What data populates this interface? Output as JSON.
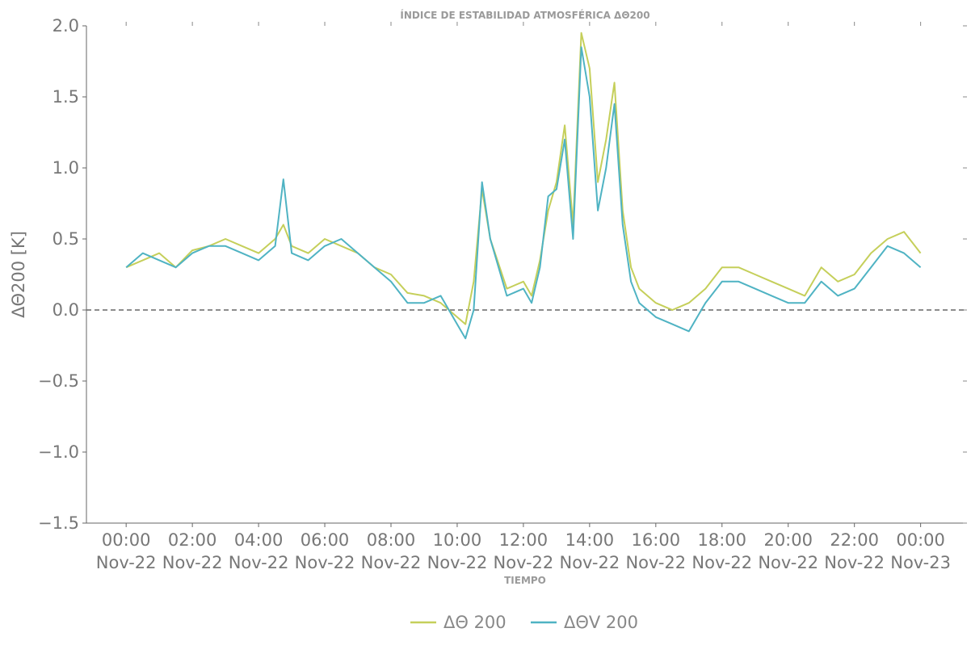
{
  "chart_data": {
    "type": "line",
    "title": "ÍNDICE DE ESTABILIDAD ATMOSFÉRICA ΔΘ200",
    "xlabel": "TIEMPO",
    "ylabel": "ΔΘ200 [K]",
    "ylim": [
      -1.5,
      2.0
    ],
    "y_ticks": [
      "−1.5",
      "−1.0",
      "−0.5",
      "0.0",
      "0.5",
      "1.0",
      "1.5",
      "2.0"
    ],
    "xlim_hours": [
      -1.2,
      25.4
    ],
    "x_ticks": [
      {
        "time": "00:00",
        "date": "Nov-22"
      },
      {
        "time": "02:00",
        "date": "Nov-22"
      },
      {
        "time": "04:00",
        "date": "Nov-22"
      },
      {
        "time": "06:00",
        "date": "Nov-22"
      },
      {
        "time": "08:00",
        "date": "Nov-22"
      },
      {
        "time": "10:00",
        "date": "Nov-22"
      },
      {
        "time": "12:00",
        "date": "Nov-22"
      },
      {
        "time": "14:00",
        "date": "Nov-22"
      },
      {
        "time": "16:00",
        "date": "Nov-22"
      },
      {
        "time": "18:00",
        "date": "Nov-22"
      },
      {
        "time": "20:00",
        "date": "Nov-22"
      },
      {
        "time": "22:00",
        "date": "Nov-22"
      },
      {
        "time": "00:00",
        "date": "Nov-23"
      }
    ],
    "reference_line": {
      "y": 0.0,
      "style": "dashed",
      "color": "#666666"
    },
    "grid": false,
    "legend_position": "bottom-center",
    "series": [
      {
        "name": "ΔΘ 200",
        "color": "#c5cf5a",
        "x": [
          "2022-11-22 00:00",
          "2022-11-22 00:30",
          "2022-11-22 01:00",
          "2022-11-22 01:30",
          "2022-11-22 02:00",
          "2022-11-22 02:30",
          "2022-11-22 03:00",
          "2022-11-22 03:30",
          "2022-11-22 04:00",
          "2022-11-22 04:30",
          "2022-11-22 04:45",
          "2022-11-22 05:00",
          "2022-11-22 05:30",
          "2022-11-22 06:00",
          "2022-11-22 06:30",
          "2022-11-22 07:00",
          "2022-11-22 07:30",
          "2022-11-22 08:00",
          "2022-11-22 08:30",
          "2022-11-22 09:00",
          "2022-11-22 09:30",
          "2022-11-22 10:00",
          "2022-11-22 10:15",
          "2022-11-22 10:30",
          "2022-11-22 10:45",
          "2022-11-22 11:00",
          "2022-11-22 11:30",
          "2022-11-22 12:00",
          "2022-11-22 12:15",
          "2022-11-22 12:30",
          "2022-11-22 12:45",
          "2022-11-22 13:00",
          "2022-11-22 13:15",
          "2022-11-22 13:30",
          "2022-11-22 13:45",
          "2022-11-22 14:00",
          "2022-11-22 14:15",
          "2022-11-22 14:30",
          "2022-11-22 14:45",
          "2022-11-22 15:00",
          "2022-11-22 15:15",
          "2022-11-22 15:30",
          "2022-11-22 16:00",
          "2022-11-22 16:30",
          "2022-11-22 17:00",
          "2022-11-22 17:30",
          "2022-11-22 18:00",
          "2022-11-22 18:30",
          "2022-11-22 19:00",
          "2022-11-22 19:30",
          "2022-11-22 20:00",
          "2022-11-22 20:30",
          "2022-11-22 21:00",
          "2022-11-22 21:30",
          "2022-11-22 22:00",
          "2022-11-22 22:30",
          "2022-11-22 23:00",
          "2022-11-22 23:30",
          "2022-11-23 00:00"
        ],
        "y": [
          0.3,
          0.35,
          0.4,
          0.3,
          0.42,
          0.45,
          0.5,
          0.45,
          0.4,
          0.5,
          0.6,
          0.45,
          0.4,
          0.5,
          0.45,
          0.4,
          0.3,
          0.25,
          0.12,
          0.1,
          0.05,
          -0.05,
          -0.1,
          0.2,
          0.85,
          0.5,
          0.15,
          0.2,
          0.1,
          0.35,
          0.7,
          0.9,
          1.3,
          0.6,
          1.95,
          1.7,
          0.9,
          1.2,
          1.6,
          0.7,
          0.3,
          0.15,
          0.05,
          0.0,
          0.05,
          0.15,
          0.3,
          0.3,
          0.25,
          0.2,
          0.15,
          0.1,
          0.3,
          0.2,
          0.25,
          0.4,
          0.5,
          0.55,
          0.4
        ]
      },
      {
        "name": "ΔΘV 200",
        "color": "#4fb3c3",
        "x": [
          "2022-11-22 00:00",
          "2022-11-22 00:30",
          "2022-11-22 01:00",
          "2022-11-22 01:30",
          "2022-11-22 02:00",
          "2022-11-22 02:30",
          "2022-11-22 03:00",
          "2022-11-22 03:30",
          "2022-11-22 04:00",
          "2022-11-22 04:30",
          "2022-11-22 04:45",
          "2022-11-22 05:00",
          "2022-11-22 05:30",
          "2022-11-22 06:00",
          "2022-11-22 06:30",
          "2022-11-22 07:00",
          "2022-11-22 07:30",
          "2022-11-22 08:00",
          "2022-11-22 08:30",
          "2022-11-22 09:00",
          "2022-11-22 09:30",
          "2022-11-22 10:00",
          "2022-11-22 10:15",
          "2022-11-22 10:30",
          "2022-11-22 10:45",
          "2022-11-22 11:00",
          "2022-11-22 11:30",
          "2022-11-22 12:00",
          "2022-11-22 12:15",
          "2022-11-22 12:30",
          "2022-11-22 12:45",
          "2022-11-22 13:00",
          "2022-11-22 13:15",
          "2022-11-22 13:30",
          "2022-11-22 13:45",
          "2022-11-22 14:00",
          "2022-11-22 14:15",
          "2022-11-22 14:30",
          "2022-11-22 14:45",
          "2022-11-22 15:00",
          "2022-11-22 15:15",
          "2022-11-22 15:30",
          "2022-11-22 16:00",
          "2022-11-22 16:30",
          "2022-11-22 17:00",
          "2022-11-22 17:30",
          "2022-11-22 18:00",
          "2022-11-22 18:30",
          "2022-11-22 19:00",
          "2022-11-22 19:30",
          "2022-11-22 20:00",
          "2022-11-22 20:30",
          "2022-11-22 21:00",
          "2022-11-22 21:30",
          "2022-11-22 22:00",
          "2022-11-22 22:30",
          "2022-11-22 23:00",
          "2022-11-22 23:30",
          "2022-11-23 00:00"
        ],
        "y": [
          0.3,
          0.4,
          0.35,
          0.3,
          0.4,
          0.45,
          0.45,
          0.4,
          0.35,
          0.45,
          0.92,
          0.4,
          0.35,
          0.45,
          0.5,
          0.4,
          0.3,
          0.2,
          0.05,
          0.05,
          0.1,
          -0.1,
          -0.2,
          0.0,
          0.9,
          0.5,
          0.1,
          0.15,
          0.05,
          0.3,
          0.8,
          0.85,
          1.2,
          0.5,
          1.85,
          1.5,
          0.7,
          1.0,
          1.45,
          0.6,
          0.2,
          0.05,
          -0.05,
          -0.1,
          -0.15,
          0.05,
          0.2,
          0.2,
          0.15,
          0.1,
          0.05,
          0.05,
          0.2,
          0.1,
          0.15,
          0.3,
          0.45,
          0.4,
          0.3
        ]
      }
    ]
  }
}
